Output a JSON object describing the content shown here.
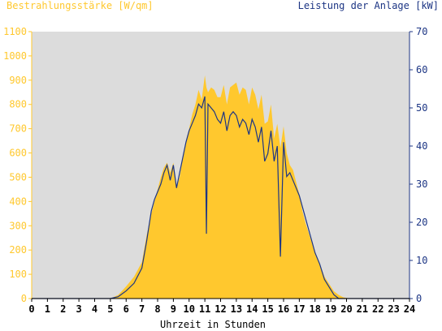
{
  "header": {
    "left_title": "Bestrahlungsstärke [W/qm]",
    "right_title": "Leistung der Anlage [kW]"
  },
  "chart_data": {
    "type": "area",
    "xlabel": "Uhrzeit in Stunden",
    "ylabel_left": "Bestrahlungsstärke [W/qm]",
    "ylabel_right": "Leistung der Anlage [kW]",
    "xlim": [
      0,
      24
    ],
    "ylim_left": [
      0,
      1100
    ],
    "ylim_right": [
      0,
      70
    ],
    "x_ticks": [
      0,
      1,
      2,
      3,
      4,
      5,
      6,
      7,
      8,
      9,
      10,
      11,
      12,
      13,
      14,
      15,
      16,
      17,
      18,
      19,
      20,
      21,
      22,
      23,
      24
    ],
    "y_ticks_left": [
      0,
      100,
      200,
      300,
      400,
      500,
      600,
      700,
      800,
      900,
      1000,
      1100
    ],
    "y_ticks_right": [
      0,
      10,
      20,
      30,
      40,
      50,
      60,
      70
    ],
    "grid": false,
    "colors": {
      "plot_background": "#dcdcdc",
      "irradiance_fill": "#ffc82e",
      "power_line": "#1c3584",
      "left_axis": "#ffc82e",
      "right_axis": "#1c3584"
    },
    "series": [
      {
        "axis": "left",
        "style": "filled-area",
        "x": [
          5.0,
          5.5,
          6.0,
          6.5,
          7.0,
          7.3,
          7.6,
          7.8,
          8.0,
          8.2,
          8.4,
          8.6,
          8.8,
          9.0,
          9.2,
          9.4,
          9.6,
          9.8,
          10.0,
          10.2,
          10.4,
          10.6,
          10.8,
          11.0,
          11.1,
          11.2,
          11.4,
          11.6,
          11.8,
          12.0,
          12.2,
          12.4,
          12.6,
          12.8,
          13.0,
          13.2,
          13.4,
          13.6,
          13.8,
          14.0,
          14.2,
          14.4,
          14.6,
          14.8,
          15.0,
          15.2,
          15.4,
          15.6,
          15.8,
          16.0,
          16.2,
          16.4,
          16.6,
          16.8,
          17.0,
          17.2,
          17.4,
          17.6,
          17.8,
          18.0,
          18.3,
          18.6,
          18.9,
          19.2,
          19.5,
          19.8,
          20.2,
          20.5
        ],
        "values": [
          0,
          15,
          50,
          90,
          150,
          260,
          350,
          400,
          450,
          500,
          540,
          560,
          520,
          560,
          460,
          500,
          580,
          650,
          700,
          760,
          800,
          860,
          820,
          920,
          870,
          850,
          870,
          860,
          830,
          830,
          880,
          800,
          870,
          880,
          890,
          840,
          870,
          860,
          800,
          870,
          840,
          780,
          840,
          720,
          730,
          800,
          660,
          720,
          620,
          710,
          600,
          550,
          530,
          480,
          430,
          360,
          310,
          270,
          230,
          190,
          140,
          90,
          60,
          30,
          15,
          5,
          0,
          0
        ]
      },
      {
        "axis": "right",
        "style": "line",
        "x": [
          5.0,
          5.5,
          6.0,
          6.5,
          7.0,
          7.3,
          7.6,
          7.8,
          8.0,
          8.2,
          8.4,
          8.6,
          8.8,
          9.0,
          9.2,
          9.4,
          9.6,
          9.8,
          10.0,
          10.2,
          10.4,
          10.6,
          10.8,
          11.0,
          11.1,
          11.2,
          11.4,
          11.6,
          11.8,
          12.0,
          12.2,
          12.4,
          12.6,
          12.8,
          13.0,
          13.2,
          13.4,
          13.6,
          13.8,
          14.0,
          14.2,
          14.4,
          14.6,
          14.8,
          15.0,
          15.2,
          15.4,
          15.6,
          15.8,
          16.0,
          16.2,
          16.4,
          16.6,
          16.8,
          17.0,
          17.2,
          17.4,
          17.6,
          17.8,
          18.0,
          18.3,
          18.6,
          18.9,
          19.2,
          19.5,
          19.8,
          20.2,
          20.5
        ],
        "values": [
          0,
          0.5,
          2,
          4,
          8,
          15,
          23,
          26,
          28,
          30,
          33,
          35,
          31,
          35,
          29,
          33,
          37,
          41,
          44,
          46,
          48,
          51,
          50,
          53,
          17,
          51,
          50,
          49,
          47,
          46,
          49,
          44,
          48,
          49,
          48,
          45,
          47,
          46,
          43,
          47,
          45,
          41,
          45,
          36,
          38,
          44,
          36,
          40,
          11,
          41,
          32,
          33,
          31,
          29,
          27,
          24,
          21,
          18,
          15,
          12,
          9,
          5,
          3,
          1,
          0,
          0,
          0,
          0
        ]
      }
    ]
  }
}
